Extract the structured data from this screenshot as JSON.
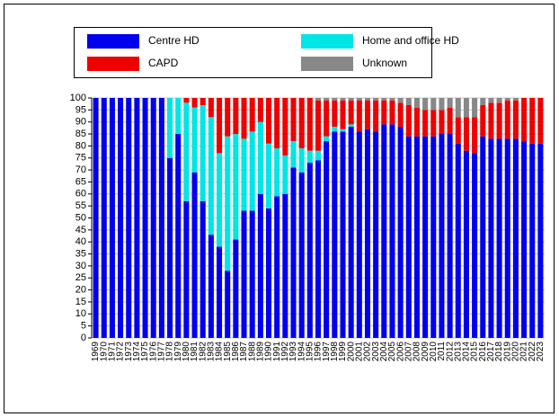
{
  "chart_data": {
    "type": "stacked_bar",
    "categories": [
      "1969",
      "1970",
      "1971",
      "1972",
      "1973",
      "1974",
      "1975",
      "1976",
      "1977",
      "1978",
      "1979",
      "1980",
      "1981",
      "1982",
      "1983",
      "1984",
      "1985",
      "1986",
      "1987",
      "1988",
      "1989",
      "1990",
      "1991",
      "1992",
      "1993",
      "1994",
      "1995",
      "1996",
      "1997",
      "1998",
      "1999",
      "2000",
      "2001",
      "2002",
      "2003",
      "2004",
      "2005",
      "2006",
      "2007",
      "2008",
      "2009",
      "2010",
      "2011",
      "2012",
      "2013",
      "2014",
      "2015",
      "2016",
      "2017",
      "2018",
      "2019",
      "2020",
      "2021",
      "2022",
      "2023"
    ],
    "series": [
      {
        "name": "Centre HD",
        "color": "#0000ee",
        "values": [
          100,
          100,
          100,
          100,
          100,
          100,
          100,
          100,
          100,
          75,
          85,
          57,
          69,
          57,
          43,
          38,
          28,
          41,
          53,
          53,
          60,
          54,
          59,
          60,
          71,
          69,
          73,
          74,
          82,
          86,
          86,
          88,
          86,
          87,
          86,
          89,
          89,
          88,
          84,
          84,
          84,
          84,
          85,
          85,
          81,
          78,
          77,
          84,
          83,
          83,
          83,
          83,
          82,
          81,
          81
        ]
      },
      {
        "name": "Home and office HD",
        "color": "#00e5e5",
        "values": [
          0,
          0,
          0,
          0,
          0,
          0,
          0,
          0,
          0,
          25,
          15,
          41,
          27,
          40,
          49,
          39,
          56,
          44,
          30,
          33,
          30,
          27,
          20,
          16,
          11,
          10,
          5,
          4,
          2,
          2,
          1,
          1,
          0,
          0,
          0,
          0,
          0,
          0,
          0,
          0,
          0,
          0,
          0,
          0,
          0,
          0,
          0,
          0,
          0,
          0,
          0,
          0,
          0,
          0,
          0
        ]
      },
      {
        "name": "CAPD",
        "color": "#ee0000",
        "values": [
          0,
          0,
          0,
          0,
          0,
          0,
          0,
          0,
          0,
          0,
          0,
          2,
          4,
          3,
          8,
          23,
          16,
          15,
          17,
          14,
          10,
          19,
          21,
          24,
          18,
          21,
          22,
          21,
          15,
          11,
          12,
          10,
          13,
          12,
          13,
          10,
          10,
          10,
          13,
          12,
          11,
          11,
          10,
          11,
          11,
          14,
          15,
          13,
          15,
          15,
          16,
          16,
          18,
          19,
          19
        ]
      },
      {
        "name": "Unknown",
        "color": "#888888",
        "values": [
          0,
          0,
          0,
          0,
          0,
          0,
          0,
          0,
          0,
          0,
          0,
          0,
          0,
          0,
          0,
          0,
          0,
          0,
          0,
          0,
          0,
          0,
          0,
          0,
          0,
          0,
          0,
          1,
          1,
          1,
          1,
          1,
          1,
          1,
          1,
          1,
          1,
          2,
          3,
          4,
          5,
          5,
          5,
          4,
          8,
          8,
          8,
          3,
          2,
          2,
          1,
          1,
          0,
          0,
          0
        ]
      }
    ],
    "ylim": [
      0,
      100
    ],
    "yticks": [
      0,
      5,
      10,
      15,
      20,
      25,
      30,
      35,
      40,
      45,
      50,
      55,
      60,
      65,
      70,
      75,
      80,
      85,
      90,
      95,
      100
    ],
    "grid": true
  }
}
